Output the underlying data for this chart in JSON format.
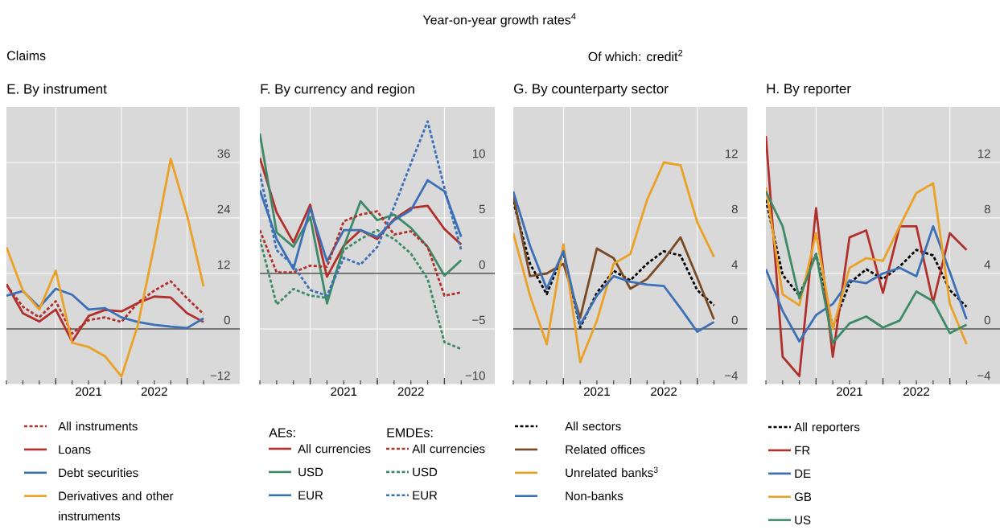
{
  "chart_data": [
    {
      "type": "line",
      "title": "E. By instrument",
      "annotations": [
        "Year-on-year growth rates$^{4}$",
        "Claims"
      ],
      "x": [
        2020.25,
        2020.5,
        2020.75,
        2021,
        2021.25,
        2021.5,
        2021.75,
        2022,
        2022.25,
        2022.5,
        2022.75,
        2023,
        2023.25
      ],
      "xlim": [
        2020.25,
        2023.8
      ],
      "xticks": [
        {
          "value": 2021,
          "label": null
        },
        {
          "value": 2021.5,
          "label": "2021"
        },
        {
          "value": 2022,
          "label": null
        },
        {
          "value": 2022.5,
          "label": "2022"
        },
        {
          "value": 2023,
          "label": null
        }
      ],
      "ylim": [
        -12,
        48
      ],
      "yticks": [
        {
          "value": -12,
          "label": "−12"
        },
        0,
        12,
        24,
        36
      ],
      "grid": true,
      "legend": "bottom",
      "ref_lines": [
        {
          "axis": "y",
          "value": 0,
          "color": "#000000"
        }
      ],
      "series": [
        {
          "name": "All instruments",
          "color": "#b2302c",
          "line_style": "dashed",
          "values": [
            9.5,
            4.8,
            2.5,
            6.0,
            -1.0,
            1.9,
            2.5,
            1.5,
            5.7,
            8.3,
            10.3,
            6.6,
            3.2
          ]
        },
        {
          "name": "Loans",
          "color": "#b2302c",
          "values": [
            9.7,
            3.4,
            1.6,
            4.2,
            -2.7,
            2.8,
            4.1,
            3.8,
            5.6,
            7.0,
            6.8,
            3.4,
            1.5
          ]
        },
        {
          "name": "Debt securities",
          "color": "#3b6fb6",
          "values": [
            7.2,
            8.2,
            4.7,
            8.7,
            7.4,
            4.2,
            4.5,
            2.5,
            1.5,
            0.9,
            0.5,
            0.2,
            2.3
          ]
        },
        {
          "name": "Derivatives and other instruments",
          "color": "#eba125",
          "values": [
            17.7,
            8.3,
            4.2,
            12.6,
            -3.0,
            -3.9,
            -5.9,
            -10.3,
            0.8,
            18.1,
            36.8,
            24.5,
            9.2
          ]
        }
      ]
    },
    {
      "type": "line",
      "title": "F. By currency and region",
      "annotations": [
        "AEs:",
        "EMDEs:"
      ],
      "x": [
        2020.25,
        2020.5,
        2020.75,
        2021,
        2021.25,
        2021.5,
        2021.75,
        2022,
        2022.25,
        2022.5,
        2022.75,
        2023,
        2023.25
      ],
      "xlim": [
        2020.25,
        2023.75
      ],
      "xticks": [
        {
          "value": 2021,
          "label": null
        },
        {
          "value": 2021.5,
          "label": "2021"
        },
        {
          "value": 2022,
          "label": null
        },
        {
          "value": 2022.5,
          "label": "2022"
        },
        {
          "value": 2023,
          "label": null
        }
      ],
      "ylim": [
        -10,
        15
      ],
      "yticks": [
        {
          "value": -10,
          "label": "−10"
        },
        {
          "value": -5,
          "label": "−5"
        },
        0,
        5,
        10
      ],
      "grid": true,
      "legend": "bottom",
      "ref_lines": [
        {
          "axis": "y",
          "value": 0,
          "color": "#000000"
        }
      ],
      "series": [
        {
          "name": "All currencies",
          "color": "#b2302c",
          "values": [
            10.4,
            5.5,
            2.8,
            6.2,
            -0.3,
            2.5,
            3.9,
            3.1,
            4.9,
            5.9,
            6.1,
            4.0,
            2.6
          ]
        },
        {
          "name": "USD",
          "color": "#3e8a67",
          "values": [
            12.6,
            3.7,
            2.4,
            5.1,
            -2.7,
            2.4,
            6.5,
            4.8,
            5.3,
            4.1,
            2.4,
            -0.2,
            1.2
          ]
        },
        {
          "name": "EUR",
          "color": "#3b6fb6",
          "values": [
            7.5,
            3.1,
            0.4,
            5.9,
            1.1,
            3.9,
            3.9,
            3.3,
            4.8,
            5.7,
            8.4,
            7.4,
            3.3
          ]
        },
        {
          "name": "All currencies",
          "color": "#b2302c",
          "line_style": "dashed",
          "values": [
            3.9,
            0.1,
            0.1,
            0.7,
            0.6,
            4.7,
            5.3,
            5.6,
            3.5,
            3.8,
            2.4,
            -2.0,
            -1.7
          ]
        },
        {
          "name": "USD",
          "color": "#3e8a67",
          "line_style": "dashed",
          "values": [
            3.1,
            -2.8,
            -1.4,
            -2.0,
            -2.2,
            2.1,
            3.1,
            3.9,
            3.1,
            1.8,
            -0.5,
            -6.2,
            -6.8
          ]
        },
        {
          "name": "EUR",
          "color": "#3b6fb6",
          "line_style": "dashed",
          "values": [
            9.0,
            2.1,
            0.7,
            -1.5,
            -2.0,
            1.4,
            0.8,
            2.4,
            6.0,
            9.9,
            13.7,
            7.7,
            2.1
          ]
        }
      ]
    },
    {
      "type": "line",
      "title": "G. By counterparty sector",
      "annotations": [
        "Of which: credit$^{2}$"
      ],
      "x": [
        2020.25,
        2020.5,
        2020.75,
        2021,
        2021.25,
        2021.5,
        2021.75,
        2022,
        2022.25,
        2022.5,
        2022.75,
        2023,
        2023.25
      ],
      "xlim": [
        2020.25,
        2023.75
      ],
      "xticks": [
        {
          "value": 2021,
          "label": null
        },
        {
          "value": 2021.5,
          "label": "2021"
        },
        {
          "value": 2022,
          "label": null
        },
        {
          "value": 2022.5,
          "label": "2022"
        },
        {
          "value": 2023,
          "label": null
        }
      ],
      "ylim": [
        -4,
        16
      ],
      "yticks": [
        {
          "value": -4,
          "label": "−4"
        },
        0,
        4,
        8,
        12
      ],
      "grid": true,
      "legend": "bottom",
      "ref_lines": [
        {
          "axis": "y",
          "value": 0,
          "color": "#000000"
        }
      ],
      "series": [
        {
          "name": "All sectors",
          "color": "#000000",
          "line_style": "dashed",
          "values": [
            9.2,
            4.7,
            2.5,
            5.5,
            0.1,
            2.6,
            4.2,
            3.5,
            4.7,
            5.6,
            5.3,
            2.8,
            1.7
          ]
        },
        {
          "name": "Related offices",
          "color": "#7a4a24",
          "values": [
            9.6,
            3.8,
            4.0,
            4.7,
            0.8,
            5.8,
            5.1,
            2.9,
            3.6,
            5.0,
            6.6,
            3.7,
            0.7
          ]
        },
        {
          "name": "Unrelated banks$^{3}$",
          "color": "#eba125",
          "values": [
            6.9,
            2.4,
            -1.1,
            6.1,
            -2.4,
            0.6,
            4.7,
            5.4,
            9.3,
            12.0,
            11.8,
            7.7,
            5.2
          ]
        },
        {
          "name": "Non-banks",
          "color": "#3b6fb6",
          "values": [
            9.9,
            6.0,
            2.9,
            5.6,
            0.3,
            2.4,
            3.8,
            3.4,
            3.2,
            3.1,
            1.5,
            -0.2,
            0.5
          ]
        }
      ]
    },
    {
      "type": "line",
      "title": "H. By reporter",
      "x": [
        2020.25,
        2020.5,
        2020.75,
        2021,
        2021.25,
        2021.5,
        2021.75,
        2022,
        2022.25,
        2022.5,
        2022.75,
        2023,
        2023.25
      ],
      "xlim": [
        2020.25,
        2023.75
      ],
      "xticks": [
        {
          "value": 2021,
          "label": null
        },
        {
          "value": 2021.5,
          "label": "2021"
        },
        {
          "value": 2022,
          "label": null
        },
        {
          "value": 2022.5,
          "label": "2022"
        },
        {
          "value": 2023,
          "label": null
        }
      ],
      "ylim": [
        -4,
        16
      ],
      "yticks": [
        {
          "value": -4,
          "label": "−4"
        },
        0,
        4,
        8,
        12
      ],
      "grid": true,
      "legend": "bottom",
      "ref_lines": [
        {
          "axis": "y",
          "value": 0,
          "color": "#000000"
        }
      ],
      "series": [
        {
          "name": "All reporters",
          "color": "#000000",
          "line_style": "dashed",
          "values": [
            9.3,
            3.9,
            2.4,
            5.4,
            0.1,
            3.3,
            4.3,
            3.6,
            4.5,
            5.7,
            5.3,
            2.8,
            1.6
          ]
        },
        {
          "name": "FR",
          "color": "#b2302c",
          "values": [
            13.9,
            -2.0,
            -3.4,
            8.7,
            -2.0,
            6.6,
            7.1,
            2.6,
            7.4,
            7.4,
            1.9,
            6.9,
            5.7
          ]
        },
        {
          "name": "DE",
          "color": "#3b6fb6",
          "values": [
            4.3,
            1.3,
            -0.9,
            1.0,
            1.8,
            3.5,
            3.3,
            4.0,
            4.4,
            3.8,
            7.4,
            4.1,
            0.7
          ]
        },
        {
          "name": "GB",
          "color": "#eba125",
          "values": [
            10.2,
            2.5,
            1.7,
            6.9,
            0.0,
            4.4,
            5.1,
            4.9,
            7.4,
            9.8,
            10.5,
            1.8,
            -1.1
          ]
        },
        {
          "name": "US",
          "color": "#3e8a67",
          "values": [
            9.9,
            7.4,
            2.2,
            5.4,
            -1.0,
            0.4,
            0.9,
            0.1,
            0.6,
            2.7,
            2.0,
            -0.3,
            0.3
          ]
        }
      ]
    }
  ]
}
